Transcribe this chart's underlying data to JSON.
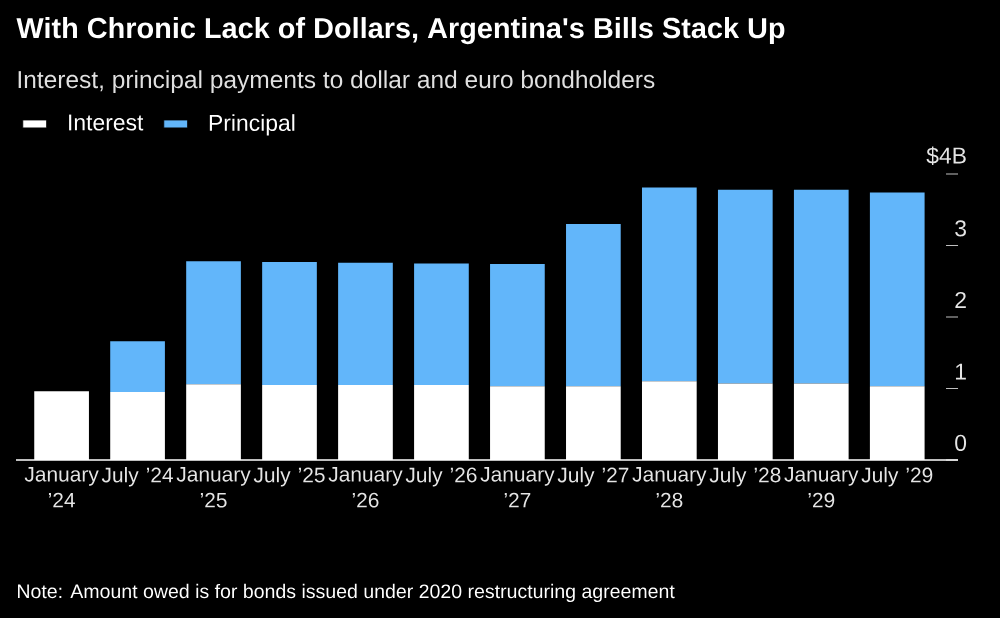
{
  "chart_data": {
    "type": "bar",
    "stacked": true,
    "title": "With Chronic Lack of Dollars, Argentina's Bills Stack Up",
    "subtitle": "Interest, principal payments to dollar and euro bondholders",
    "categories": [
      "January ’24",
      "July ’24",
      "January ’25",
      "July ’25",
      "January ’26",
      "July ’26",
      "January ’27",
      "July ’27",
      "January ’28",
      "July ’28",
      "January ’29",
      "July ’29"
    ],
    "series": [
      {
        "name": "Interest",
        "color": "#ffffff",
        "values": [
          0.96,
          0.95,
          1.06,
          1.05,
          1.05,
          1.05,
          1.03,
          1.03,
          1.1,
          1.07,
          1.07,
          1.03
        ]
      },
      {
        "name": "Principal",
        "color": "#62b6fa",
        "values": [
          0,
          0.71,
          1.72,
          1.72,
          1.71,
          1.7,
          1.71,
          2.27,
          2.71,
          2.71,
          2.71,
          2.71
        ]
      }
    ],
    "ylim": [
      0,
      4
    ],
    "yticks": [
      0,
      1,
      2,
      3,
      {
        "value": 4,
        "label": "$4B"
      }
    ],
    "legend": "top left",
    "annotations": [
      "Note: Amount owed is for bonds issued under 2020 restructuring agreement"
    ]
  }
}
